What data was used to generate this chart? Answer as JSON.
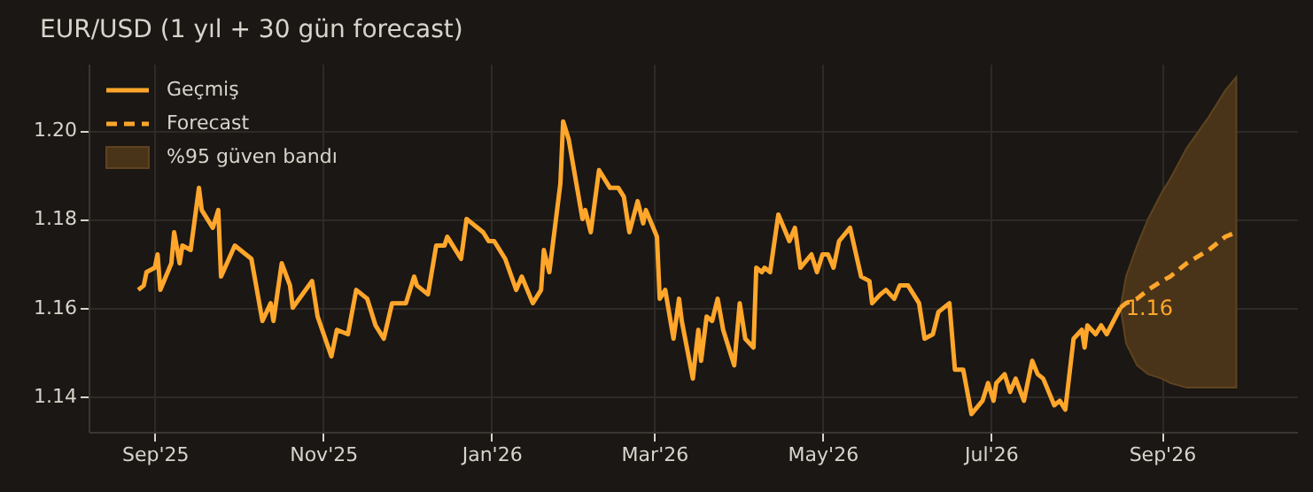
{
  "chart_data": {
    "type": "line",
    "title": "EUR/USD  (1 yıl + 30 gün forecast)",
    "xlim": [
      "2025-08-08",
      "2026-10-20"
    ],
    "xticks": [
      {
        "value": "2025-09-01",
        "label": "Sep'25"
      },
      {
        "value": "2025-11-01",
        "label": "Nov'25"
      },
      {
        "value": "2026-01-01",
        "label": "Jan'26"
      },
      {
        "value": "2026-03-01",
        "label": "Mar'26"
      },
      {
        "value": "2026-05-01",
        "label": "May'26"
      },
      {
        "value": "2026-07-01",
        "label": "Jul'26"
      },
      {
        "value": "2026-09-01",
        "label": "Sep'26"
      }
    ],
    "ylim": [
      1.132,
      1.215
    ],
    "yticks": [
      1.14,
      1.16,
      1.18,
      {
        "value": 1.2,
        "label": "1.20"
      }
    ],
    "grid": true,
    "legend": "top left",
    "series": [
      {
        "name": "Geçmiş",
        "line_style": "solid",
        "color": "#ffa62b",
        "x": [
          "2025-08-26",
          "2025-08-28",
          "2025-08-29",
          "2025-09-01",
          "2025-09-02",
          "2025-09-03",
          "2025-09-05",
          "2025-09-07",
          "2025-09-08",
          "2025-09-10",
          "2025-09-11",
          "2025-09-14",
          "2025-09-17",
          "2025-09-18",
          "2025-09-22",
          "2025-09-24",
          "2025-09-25",
          "2025-09-30",
          "2025-10-06",
          "2025-10-10",
          "2025-10-13",
          "2025-10-14",
          "2025-10-17",
          "2025-10-20",
          "2025-10-21",
          "2025-10-28",
          "2025-10-30",
          "2025-11-04",
          "2025-11-06",
          "2025-11-10",
          "2025-11-13",
          "2025-11-17",
          "2025-11-20",
          "2025-11-23",
          "2025-11-26",
          "2025-12-01",
          "2025-12-04",
          "2025-12-05",
          "2025-12-09",
          "2025-12-12",
          "2025-12-15",
          "2025-12-16",
          "2025-12-21",
          "2025-12-23",
          "2025-12-29",
          "2025-12-31",
          "2026-01-02",
          "2026-01-06",
          "2026-01-10",
          "2026-01-12",
          "2026-01-16",
          "2026-01-19",
          "2026-01-20",
          "2026-01-22",
          "2026-01-26",
          "2026-01-27",
          "2026-01-29",
          "2026-02-03",
          "2026-02-04",
          "2026-02-06",
          "2026-02-09",
          "2026-02-13",
          "2026-02-16",
          "2026-02-18",
          "2026-02-20",
          "2026-02-23",
          "2026-02-25",
          "2026-02-26",
          "2026-03-02",
          "2026-03-03",
          "2026-03-05",
          "2026-03-08",
          "2026-03-10",
          "2026-03-11",
          "2026-03-15",
          "2026-03-17",
          "2026-03-18",
          "2026-03-20",
          "2026-03-22",
          "2026-03-24",
          "2026-03-26",
          "2026-03-30",
          "2026-04-01",
          "2026-04-03",
          "2026-04-06",
          "2026-04-07",
          "2026-04-09",
          "2026-04-10",
          "2026-04-12",
          "2026-04-15",
          "2026-04-19",
          "2026-04-21",
          "2026-04-23",
          "2026-04-27",
          "2026-04-29",
          "2026-05-01",
          "2026-05-03",
          "2026-05-05",
          "2026-05-07",
          "2026-05-11",
          "2026-05-15",
          "2026-05-18",
          "2026-05-19",
          "2026-05-22",
          "2026-05-24",
          "2026-05-27",
          "2026-05-29",
          "2026-06-01",
          "2026-06-05",
          "2026-06-07",
          "2026-06-10",
          "2026-06-12",
          "2026-06-16",
          "2026-06-18",
          "2026-06-21",
          "2026-06-24",
          "2026-06-28",
          "2026-06-30",
          "2026-07-02",
          "2026-07-03",
          "2026-07-06",
          "2026-07-08",
          "2026-07-10",
          "2026-07-13",
          "2026-07-16",
          "2026-07-18",
          "2026-07-20",
          "2026-07-22",
          "2026-07-24",
          "2026-07-26",
          "2026-07-28",
          "2026-07-31",
          "2026-08-03",
          "2026-08-04",
          "2026-08-05",
          "2026-08-08",
          "2026-08-10",
          "2026-08-12",
          "2026-08-17"
        ],
        "values": [
          1.164,
          1.165,
          1.168,
          1.169,
          1.172,
          1.164,
          1.167,
          1.17,
          1.177,
          1.17,
          1.174,
          1.173,
          1.187,
          1.182,
          1.178,
          1.182,
          1.167,
          1.174,
          1.171,
          1.157,
          1.161,
          1.157,
          1.17,
          1.165,
          1.16,
          1.166,
          1.158,
          1.149,
          1.155,
          1.154,
          1.164,
          1.162,
          1.156,
          1.153,
          1.161,
          1.161,
          1.167,
          1.165,
          1.163,
          1.174,
          1.174,
          1.176,
          1.171,
          1.18,
          1.177,
          1.175,
          1.175,
          1.171,
          1.164,
          1.167,
          1.161,
          1.164,
          1.173,
          1.168,
          1.188,
          1.202,
          1.198,
          1.18,
          1.182,
          1.177,
          1.191,
          1.187,
          1.187,
          1.185,
          1.177,
          1.184,
          1.179,
          1.182,
          1.176,
          1.162,
          1.164,
          1.153,
          1.162,
          1.157,
          1.144,
          1.155,
          1.148,
          1.158,
          1.157,
          1.162,
          1.155,
          1.147,
          1.161,
          1.153,
          1.151,
          1.169,
          1.168,
          1.169,
          1.168,
          1.181,
          1.175,
          1.178,
          1.169,
          1.172,
          1.168,
          1.172,
          1.172,
          1.169,
          1.175,
          1.178,
          1.167,
          1.166,
          1.161,
          1.163,
          1.164,
          1.162,
          1.165,
          1.165,
          1.161,
          1.153,
          1.154,
          1.159,
          1.161,
          1.146,
          1.146,
          1.136,
          1.139,
          1.143,
          1.139,
          1.143,
          1.145,
          1.141,
          1.144,
          1.139,
          1.148,
          1.145,
          1.144,
          1.141,
          1.138,
          1.139,
          1.137,
          1.153,
          1.155,
          1.151,
          1.156,
          1.154,
          1.156,
          1.154,
          1.16
        ]
      },
      {
        "name": "Forecast",
        "line_style": "dashed",
        "color": "#ffa62b",
        "x": [
          "2026-08-17",
          "2026-08-19",
          "2026-08-23",
          "2026-08-27",
          "2026-09-01",
          "2026-09-04",
          "2026-09-10",
          "2026-09-18",
          "2026-09-24",
          "2026-09-28"
        ],
        "values": [
          1.16,
          1.161,
          1.162,
          1.164,
          1.166,
          1.167,
          1.17,
          1.173,
          1.176,
          1.177
        ],
        "lower": [
          1.16,
          1.152,
          1.147,
          1.145,
          1.144,
          1.143,
          1.142,
          1.142,
          1.142,
          1.142
        ],
        "upper": [
          1.16,
          1.167,
          1.174,
          1.18,
          1.186,
          1.189,
          1.196,
          1.203,
          1.209,
          1.212
        ]
      },
      {
        "name": "%95 güven bandı",
        "type": "area",
        "color": "#4a3419"
      }
    ],
    "annotations": [
      {
        "text": "1.16",
        "x": "2026-08-17",
        "y": 1.16
      }
    ]
  }
}
